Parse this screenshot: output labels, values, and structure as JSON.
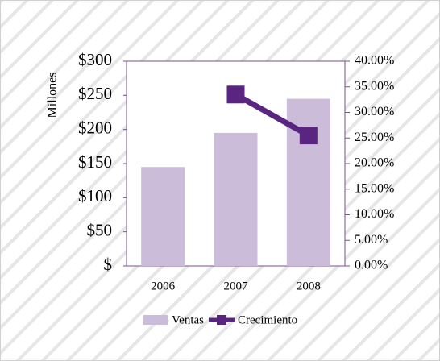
{
  "chart_data": {
    "type": "bar",
    "categories": [
      "2006",
      "2007",
      "2008"
    ],
    "series": [
      {
        "name": "Ventas",
        "color": "#cbbcd9",
        "values": [
          145,
          195,
          245
        ]
      },
      {
        "name": "Crecimiento",
        "type": "line",
        "axis": "y2",
        "color": "#5a2580",
        "values": [
          null,
          33.5,
          25.5
        ]
      }
    ],
    "ylabel": "Millones",
    "ylim": [
      0,
      300
    ],
    "yticks": [
      {
        "value": 0,
        "label": "$"
      },
      {
        "value": 50,
        "label": "$50"
      },
      {
        "value": 100,
        "label": "$100"
      },
      {
        "value": 150,
        "label": "$150"
      },
      {
        "value": 200,
        "label": "$200"
      },
      {
        "value": 250,
        "label": "$250"
      },
      {
        "value": 300,
        "label": "$300"
      }
    ],
    "y2lim": [
      0,
      40
    ],
    "y2ticks": [
      {
        "value": 0,
        "label": "0.00%"
      },
      {
        "value": 5,
        "label": "5.00%"
      },
      {
        "value": 10,
        "label": "10.00%"
      },
      {
        "value": 15,
        "label": "15.00%"
      },
      {
        "value": 20,
        "label": "20.00%"
      },
      {
        "value": 25,
        "label": "25.00%"
      },
      {
        "value": 30,
        "label": "30.00%"
      },
      {
        "value": 35,
        "label": "35.00%"
      },
      {
        "value": 40,
        "label": "40.00%"
      }
    ],
    "legend": "bottom"
  }
}
